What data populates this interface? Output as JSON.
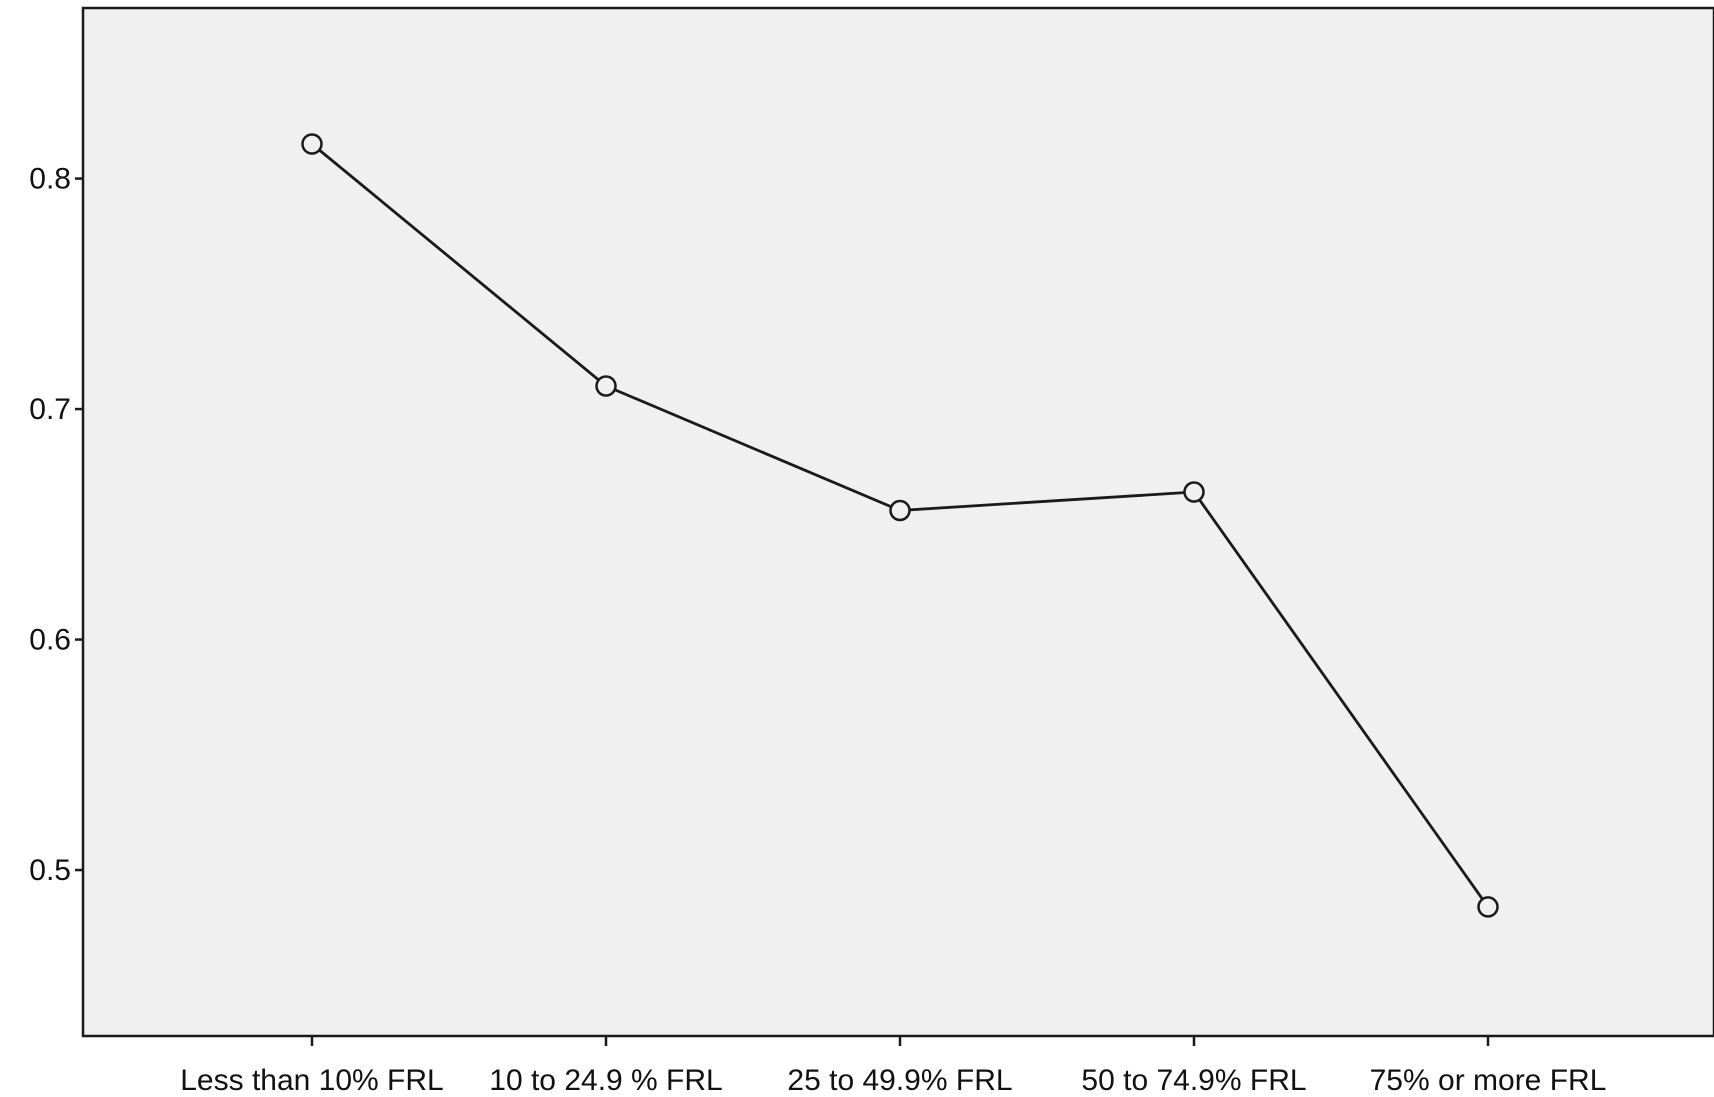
{
  "chart_data": {
    "type": "line",
    "title": "",
    "xlabel": "",
    "ylabel": "",
    "categories": [
      "Less than 10% FRL",
      "10 to 24.9 % FRL",
      "25 to 49.9% FRL",
      "50 to 74.9% FRL",
      "75% or more FRL"
    ],
    "series": [
      {
        "values": [
          0.815,
          0.71,
          0.656,
          0.664,
          0.484
        ]
      }
    ],
    "yticks": [
      0.5,
      0.6,
      0.7,
      0.8
    ],
    "ytick_labels": [
      "0.5",
      "0.6",
      "0.7",
      "0.8"
    ],
    "ylim": [
      0.428,
      0.874
    ],
    "grid": false,
    "legend": "none",
    "colors": {
      "plot_background": "#f0f0f0",
      "line": "#1a1a1a",
      "marker_fill": "#f0f0f0",
      "axis": "#1a1a1a"
    },
    "marker": "open-circle"
  }
}
